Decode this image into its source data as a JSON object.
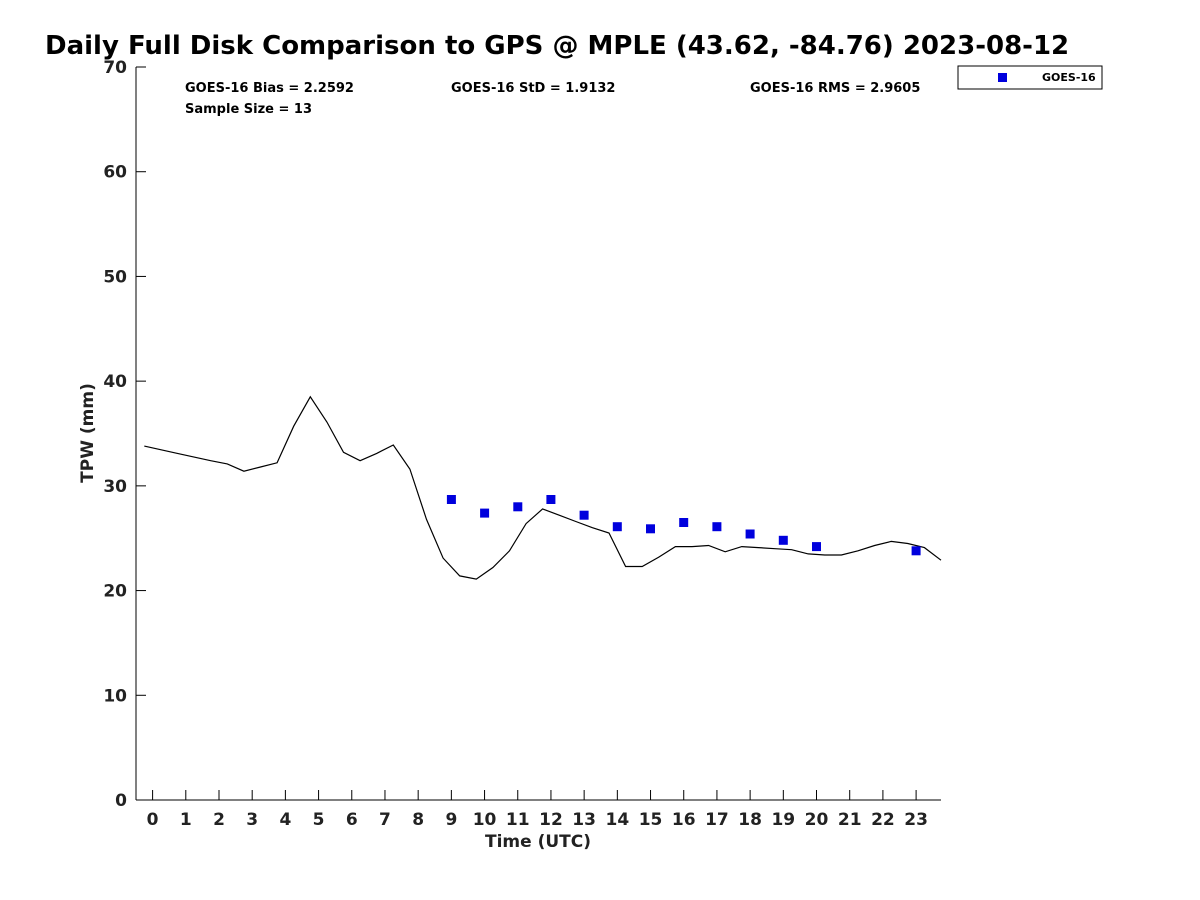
{
  "chart_data": {
    "type": "scatter",
    "title": "Daily Full Disk Comparison to GPS @ MPLE (43.62, -84.76) 2023-08-12",
    "xlabel": "Time (UTC)",
    "ylabel": "TPW (mm)",
    "xlim": [
      -0.5,
      23.75
    ],
    "ylim": [
      0,
      70
    ],
    "x_ticks": [
      0,
      1,
      2,
      3,
      4,
      5,
      6,
      7,
      8,
      9,
      10,
      11,
      12,
      13,
      14,
      15,
      16,
      17,
      18,
      19,
      20,
      21,
      22,
      23
    ],
    "y_ticks": [
      0,
      10,
      20,
      30,
      40,
      50,
      60,
      70
    ],
    "stats": {
      "bias": "GOES-16 Bias = 2.2592",
      "std": "GOES-16 StD = 1.9132",
      "rms": "GOES-16 RMS = 2.9605",
      "sample": "Sample Size = 13"
    },
    "legend": {
      "label": "GOES-16",
      "color": "#0000dd",
      "position": "top-right"
    },
    "gps_line": {
      "name": "GPS",
      "color": "#000000",
      "x": [
        -0.25,
        0.75,
        1.75,
        2.25,
        2.75,
        3.25,
        3.75,
        4.25,
        4.75,
        5.25,
        5.75,
        6.25,
        6.75,
        7.25,
        7.75,
        8.25,
        8.75,
        9.25,
        9.75,
        10.25,
        10.75,
        11.25,
        11.75,
        12.25,
        12.75,
        13.25,
        13.75,
        14.25,
        14.75,
        15.25,
        15.75,
        16.25,
        16.75,
        17.25,
        17.75,
        18.25,
        18.75,
        19.25,
        19.75,
        20.25,
        20.75,
        21.25,
        21.75,
        22.25,
        22.75,
        23.25,
        23.75
      ],
      "y": [
        33.8,
        33.1,
        32.4,
        32.1,
        31.4,
        31.8,
        32.2,
        35.7,
        38.5,
        36.1,
        33.2,
        32.4,
        33.1,
        33.9,
        31.6,
        26.8,
        23.1,
        21.4,
        21.1,
        22.2,
        23.8,
        26.4,
        27.8,
        27.2,
        26.6,
        26.0,
        25.5,
        22.3,
        22.3,
        23.2,
        24.2,
        24.2,
        24.3,
        23.7,
        24.2,
        24.1,
        24.0,
        23.9,
        23.5,
        23.4,
        23.4,
        23.8,
        24.3,
        24.7,
        24.5,
        24.1,
        22.9
      ]
    },
    "series": [
      {
        "name": "GOES-16",
        "color": "#0000dd",
        "x": [
          9,
          10,
          11,
          12,
          13,
          14,
          15,
          16,
          17,
          18,
          19,
          20,
          23
        ],
        "y": [
          28.7,
          27.4,
          28.0,
          28.7,
          27.2,
          26.1,
          25.9,
          26.5,
          26.1,
          25.4,
          24.8,
          24.2,
          23.8
        ]
      }
    ]
  }
}
